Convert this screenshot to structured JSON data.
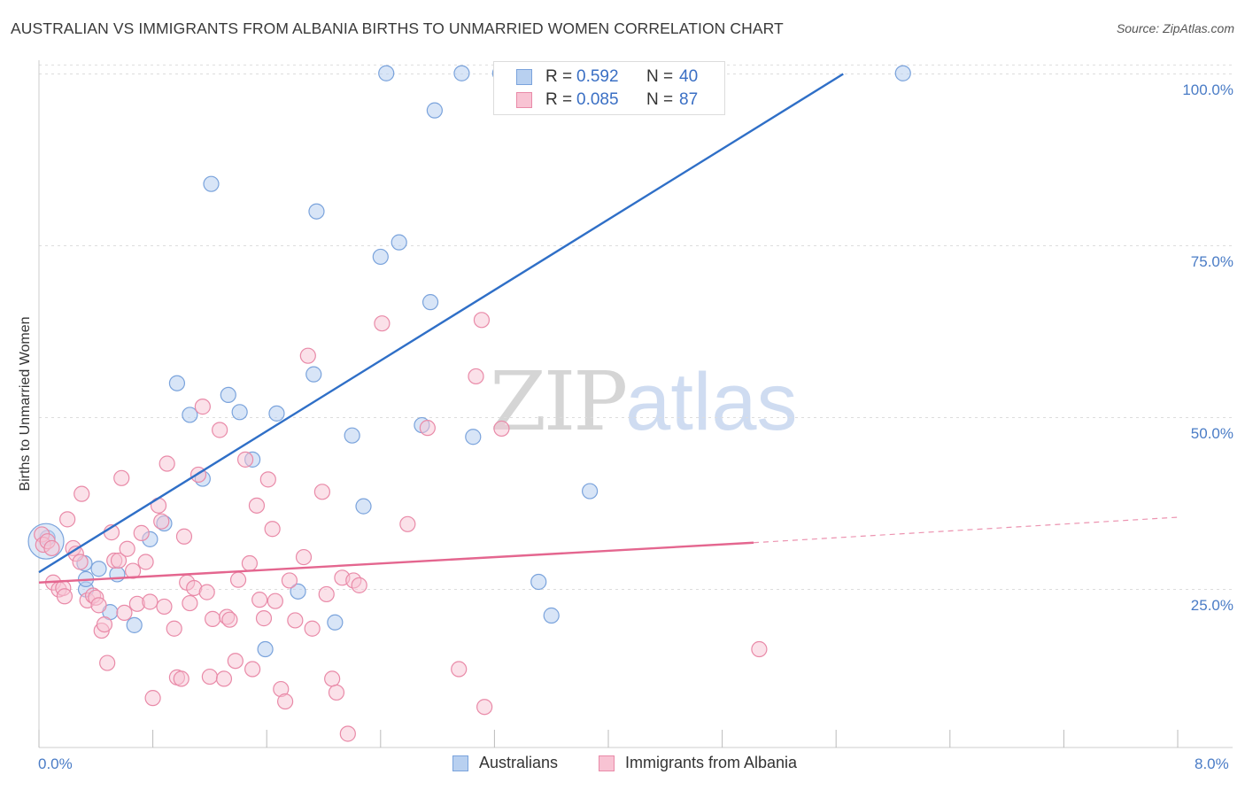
{
  "header": {
    "title": "AUSTRALIAN VS IMMIGRANTS FROM ALBANIA BIRTHS TO UNMARRIED WOMEN CORRELATION CHART",
    "source": "Source: ZipAtlas.com"
  },
  "watermark": {
    "zip": "ZIP",
    "atlas": "atlas"
  },
  "legend_top": {
    "rows": [
      {
        "r_label": "R =",
        "r_value": "0.592",
        "n_label": "N =",
        "n_value": "40"
      },
      {
        "r_label": "R =",
        "r_value": "0.085",
        "n_label": "N =",
        "n_value": "87"
      }
    ]
  },
  "legend_bottom": [
    "Australians",
    "Immigrants from Albania"
  ],
  "colors": {
    "australians_fill": "#b8d0f0",
    "australians_stroke": "#7aa3dc",
    "australians_line": "#2f6fc7",
    "albania_fill": "#f8c3d3",
    "albania_stroke": "#e98aa8",
    "albania_line": "#e4668f",
    "axis_label": "#4a7cc6",
    "grid": "#dddddd"
  },
  "chart_data": {
    "type": "scatter",
    "title": "AUSTRALIAN VS IMMIGRANTS FROM ALBANIA BIRTHS TO UNMARRIED WOMEN CORRELATION CHART",
    "xlabel": "",
    "ylabel": "Births to Unmarried Women",
    "xlim": [
      0,
      8
    ],
    "ylim": [
      2,
      102
    ],
    "x_tick_labels": [
      "0.0%",
      "8.0%"
    ],
    "y_ticks": [
      25,
      50,
      75,
      100
    ],
    "y_tick_labels": [
      "25.0%",
      "50.0%",
      "75.0%",
      "100.0%"
    ],
    "grid": true,
    "legend_position": "top-center",
    "series": [
      {
        "name": "Australians",
        "points": [
          [
            0.06,
            32.5
          ],
          [
            0.32,
            28.8
          ],
          [
            0.33,
            25.0
          ],
          [
            0.33,
            26.5
          ],
          [
            0.42,
            28.0
          ],
          [
            0.5,
            21.7
          ],
          [
            0.55,
            27.2
          ],
          [
            0.67,
            19.8
          ],
          [
            0.78,
            32.3
          ],
          [
            0.88,
            34.6
          ],
          [
            0.97,
            55.0
          ],
          [
            1.06,
            50.4
          ],
          [
            1.15,
            41.1
          ],
          [
            1.21,
            84.0
          ],
          [
            1.33,
            53.3
          ],
          [
            1.41,
            50.8
          ],
          [
            1.5,
            43.9
          ],
          [
            1.59,
            16.3
          ],
          [
            1.67,
            50.6
          ],
          [
            1.82,
            24.7
          ],
          [
            1.93,
            56.3
          ],
          [
            1.95,
            80.0
          ],
          [
            2.08,
            20.2
          ],
          [
            2.2,
            47.4
          ],
          [
            2.28,
            37.1
          ],
          [
            2.4,
            73.4
          ],
          [
            2.44,
            100.1
          ],
          [
            2.53,
            75.5
          ],
          [
            2.69,
            48.9
          ],
          [
            2.75,
            66.8
          ],
          [
            2.78,
            94.7
          ],
          [
            2.97,
            100.1
          ],
          [
            3.05,
            47.2
          ],
          [
            3.24,
            100.1
          ],
          [
            3.51,
            26.1
          ],
          [
            3.6,
            21.2
          ],
          [
            3.87,
            39.3
          ],
          [
            4.37,
            100.1
          ],
          [
            6.07,
            100.1
          ],
          [
            0.05,
            32.0
          ]
        ],
        "trend": {
          "x": [
            0.0,
            5.65
          ],
          "y": [
            27.5,
            100.0
          ]
        }
      },
      {
        "name": "Immigrants from Albania",
        "points": [
          [
            0.02,
            33.0
          ],
          [
            0.03,
            31.5
          ],
          [
            0.06,
            32.0
          ],
          [
            0.09,
            31.0
          ],
          [
            0.1,
            26.0
          ],
          [
            0.14,
            25.0
          ],
          [
            0.17,
            25.2
          ],
          [
            0.18,
            24.0
          ],
          [
            0.2,
            35.2
          ],
          [
            0.24,
            31.0
          ],
          [
            0.26,
            30.2
          ],
          [
            0.29,
            29.0
          ],
          [
            0.3,
            38.9
          ],
          [
            0.34,
            23.4
          ],
          [
            0.38,
            24.1
          ],
          [
            0.4,
            23.8
          ],
          [
            0.42,
            22.7
          ],
          [
            0.44,
            19.0
          ],
          [
            0.46,
            19.9
          ],
          [
            0.48,
            14.3
          ],
          [
            0.51,
            33.3
          ],
          [
            0.53,
            29.2
          ],
          [
            0.56,
            29.2
          ],
          [
            0.58,
            41.2
          ],
          [
            0.6,
            21.6
          ],
          [
            0.62,
            30.9
          ],
          [
            0.66,
            27.7
          ],
          [
            0.69,
            22.9
          ],
          [
            0.72,
            33.2
          ],
          [
            0.75,
            29.0
          ],
          [
            0.78,
            23.2
          ],
          [
            0.8,
            9.2
          ],
          [
            0.84,
            37.2
          ],
          [
            0.86,
            34.9
          ],
          [
            0.88,
            22.5
          ],
          [
            0.9,
            43.3
          ],
          [
            0.95,
            19.3
          ],
          [
            0.97,
            12.2
          ],
          [
            1.0,
            12.0
          ],
          [
            1.02,
            32.7
          ],
          [
            1.04,
            26.0
          ],
          [
            1.06,
            23.0
          ],
          [
            1.09,
            25.2
          ],
          [
            1.12,
            41.7
          ],
          [
            1.15,
            51.6
          ],
          [
            1.18,
            24.6
          ],
          [
            1.2,
            12.3
          ],
          [
            1.22,
            20.7
          ],
          [
            1.27,
            48.2
          ],
          [
            1.3,
            12.0
          ],
          [
            1.32,
            21.0
          ],
          [
            1.34,
            20.6
          ],
          [
            1.38,
            14.6
          ],
          [
            1.4,
            26.4
          ],
          [
            1.45,
            43.9
          ],
          [
            1.48,
            28.8
          ],
          [
            1.5,
            13.4
          ],
          [
            1.53,
            37.2
          ],
          [
            1.55,
            23.5
          ],
          [
            1.58,
            20.8
          ],
          [
            1.61,
            41.0
          ],
          [
            1.64,
            33.8
          ],
          [
            1.66,
            23.3
          ],
          [
            1.7,
            10.5
          ],
          [
            1.73,
            8.7
          ],
          [
            1.76,
            26.3
          ],
          [
            1.8,
            20.5
          ],
          [
            1.86,
            29.7
          ],
          [
            1.89,
            59.0
          ],
          [
            1.92,
            19.3
          ],
          [
            1.99,
            39.2
          ],
          [
            2.02,
            24.3
          ],
          [
            2.06,
            12.0
          ],
          [
            2.09,
            10.0
          ],
          [
            2.13,
            26.7
          ],
          [
            2.17,
            4.0
          ],
          [
            2.21,
            26.3
          ],
          [
            2.25,
            25.6
          ],
          [
            2.41,
            63.7
          ],
          [
            2.59,
            34.5
          ],
          [
            2.73,
            48.5
          ],
          [
            2.95,
            13.4
          ],
          [
            3.07,
            56.0
          ],
          [
            3.11,
            64.2
          ],
          [
            3.13,
            7.9
          ],
          [
            3.25,
            48.4
          ],
          [
            5.06,
            16.3
          ]
        ],
        "trend": {
          "x": [
            0.0,
            5.02
          ],
          "y": [
            26.0,
            31.8
          ]
        },
        "trend_extension": {
          "x": [
            5.02,
            8.0
          ],
          "y": [
            31.8,
            35.5
          ]
        }
      }
    ]
  }
}
